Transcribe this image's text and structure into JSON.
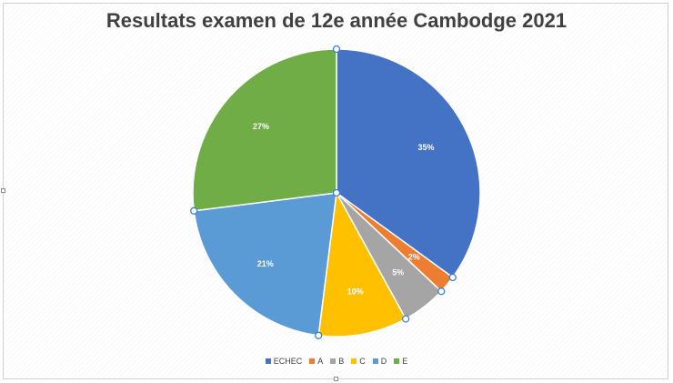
{
  "chart_data": {
    "type": "pie",
    "title": "Resultats examen de 12e année Cambodge 2021",
    "categories": [
      "ECHEC",
      "A",
      "B",
      "C",
      "D",
      "E"
    ],
    "values": [
      35,
      2,
      5,
      10,
      21,
      27
    ],
    "labels": [
      "35%",
      "2%",
      "5%",
      "10%",
      "21%",
      "27%"
    ],
    "colors": [
      "#4472C4",
      "#ED7D31",
      "#A5A5A5",
      "#FFC000",
      "#5B9BD5",
      "#70AD47"
    ],
    "legend_position": "bottom",
    "start_angle": "12 o'clock, clockwise"
  }
}
